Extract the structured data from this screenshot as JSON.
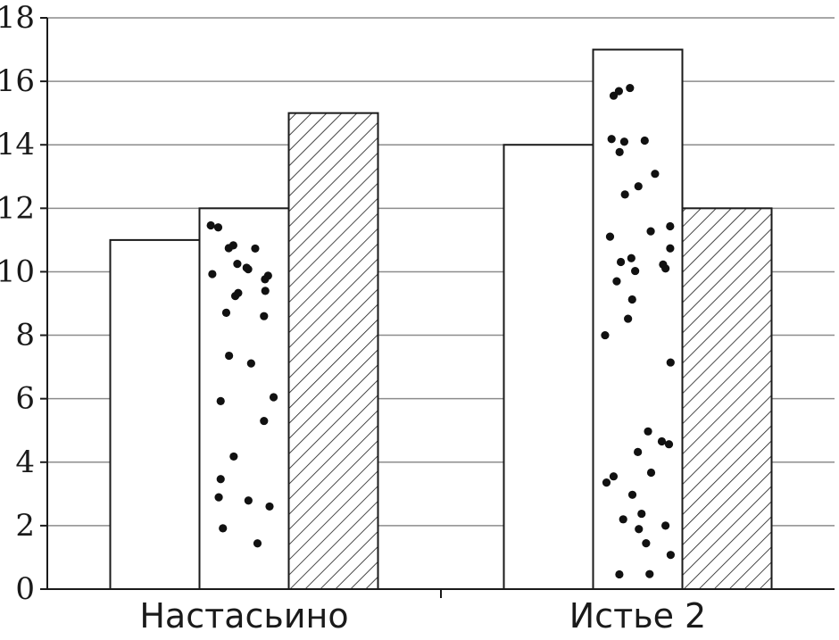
{
  "chart_data": {
    "type": "bar",
    "categories": [
      "Настасьино",
      "Истье 2"
    ],
    "series": [
      {
        "values": [
          11,
          14
        ],
        "pattern": "plain"
      },
      {
        "values": [
          12,
          17
        ],
        "pattern": "dots"
      },
      {
        "values": [
          15,
          12
        ],
        "pattern": "hatch"
      }
    ],
    "ylim": [
      0,
      18
    ],
    "yticks": [
      "0",
      "2",
      "4",
      "6",
      "8",
      "10",
      "12",
      "14",
      "16",
      "18"
    ],
    "title": "",
    "xlabel": "",
    "ylabel": "",
    "grid": true,
    "colors": {
      "bar_fill": "#ffffff",
      "outline": "#1a1a1a",
      "grid": "#8c8c8c"
    }
  }
}
